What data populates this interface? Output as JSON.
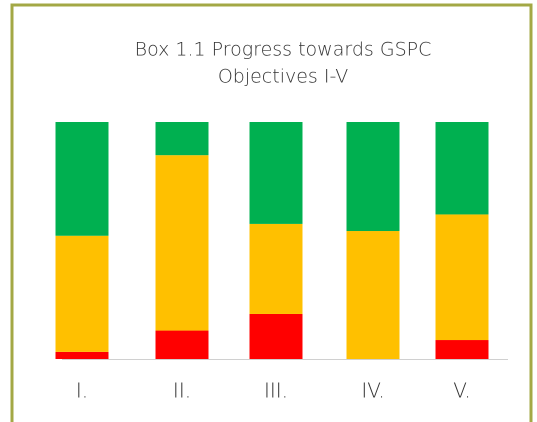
{
  "chart_data": {
    "type": "stacked_bar",
    "title": [
      "Box 1.1 Progress towards GSPC",
      "Objectives I-V"
    ],
    "categories": [
      "I.",
      "II.",
      "III.",
      "IV.",
      "V."
    ],
    "series": [
      {
        "color": "#ff0000",
        "values": [
          3,
          12,
          19,
          0,
          8
        ]
      },
      {
        "color": "#ffc000",
        "values": [
          49,
          74,
          38,
          54,
          53
        ]
      },
      {
        "color": "#00b050",
        "values": [
          48,
          14,
          43,
          46,
          39
        ]
      }
    ],
    "ylim": [
      0,
      100
    ]
  }
}
